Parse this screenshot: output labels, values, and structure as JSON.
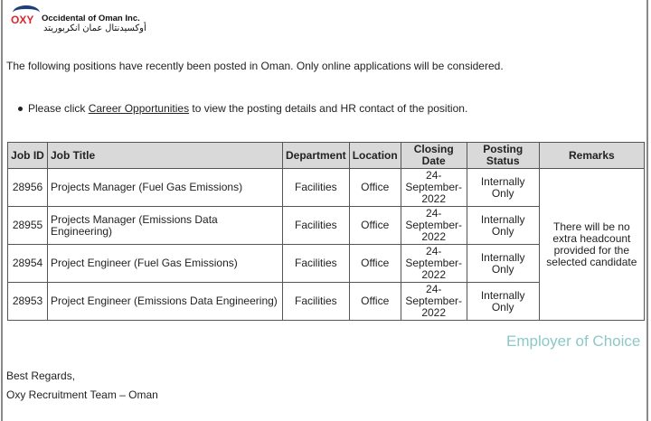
{
  "logo": {
    "mark": "OXY",
    "name_en": "Occidental of Oman Inc.",
    "name_ar": "أوكسيدنتال عمان انكربوريتد"
  },
  "intro": "The following positions have recently been posted in Oman. Only online applications will be considered.",
  "bullet": {
    "before": "Please click ",
    "link": "Career Opportunities",
    "after": " to view the posting details and HR contact of the position."
  },
  "table": {
    "headers": [
      "Job ID",
      "Job Title",
      "Department",
      "Location",
      "Closing Date",
      "Posting Status",
      "Remarks"
    ],
    "rows": [
      {
        "id": "28956",
        "title": "Projects Manager (Fuel Gas Emissions)",
        "department": "Facilities",
        "location": "Office",
        "closing": "24-September-2022",
        "status": "Internally Only"
      },
      {
        "id": "28955",
        "title": "Projects Manager (Emissions Data Engineering)",
        "department": "Facilities",
        "location": "Office",
        "closing": "24-September-2022",
        "status": "Internally Only"
      },
      {
        "id": "28954",
        "title": "Project Engineer (Fuel Gas Emissions)",
        "department": "Facilities",
        "location": "Office",
        "closing": "24-September-2022",
        "status": "Internally Only"
      },
      {
        "id": "28953",
        "title": "Project Engineer (Emissions Data Engineering)",
        "department": "Facilities",
        "location": "Office",
        "closing": "24-September-2022",
        "status": "Internally Only"
      }
    ],
    "remarks": "There will be no extra headcount provided for the selected candidate"
  },
  "employer_of_choice": "Employer of Choice",
  "signoff": {
    "regards": "Best Regards,",
    "team": "Oxy Recruitment Team – Oman"
  }
}
